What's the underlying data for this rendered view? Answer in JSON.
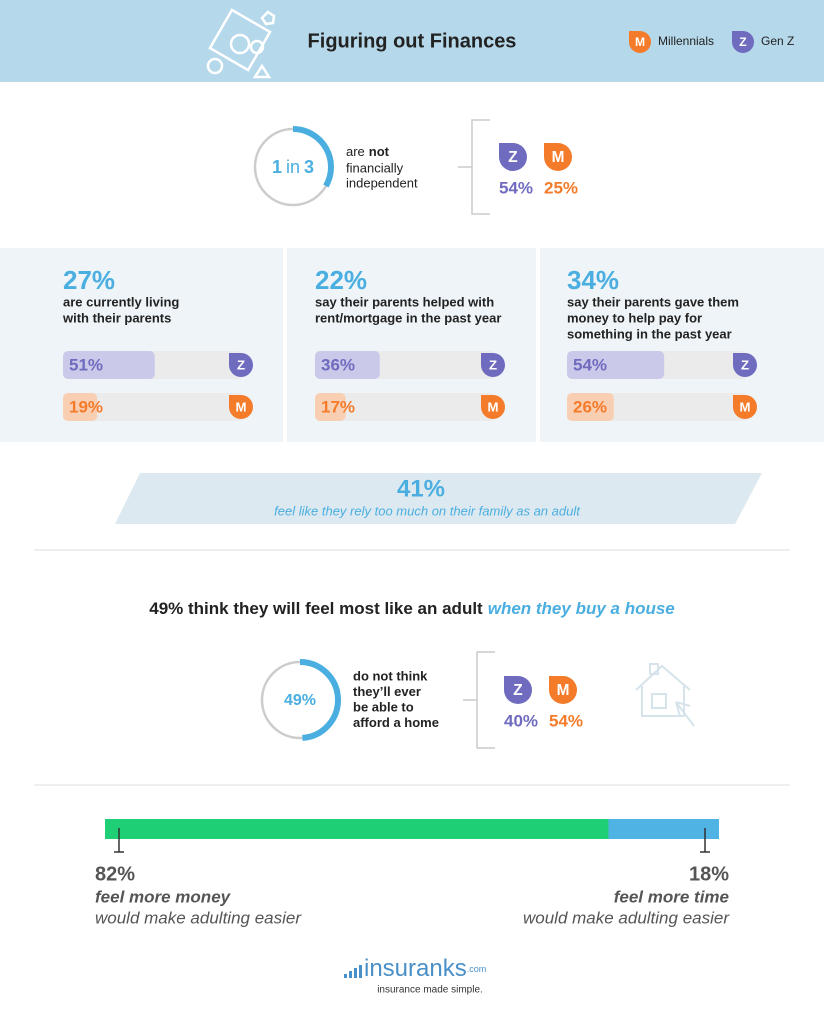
{
  "header": {
    "title": "Figuring out Finances",
    "legend": [
      {
        "key": "M",
        "name": "Millennials",
        "color": "#f47b2a"
      },
      {
        "key": "Z",
        "name": "Gen Z",
        "color": "#6f6bbf"
      }
    ]
  },
  "independence": {
    "ring": {
      "n": 1,
      "word": "in",
      "of": 3
    },
    "text_pre": "are",
    "text_bold": "not",
    "text_line2": "financially",
    "text_line3": "independent",
    "groups": [
      {
        "key": "Z",
        "value": 54,
        "label": "54%",
        "color": "#6f6bbf"
      },
      {
        "key": "M",
        "value": 25,
        "label": "25%",
        "color": "#f47b2a"
      }
    ]
  },
  "stats": [
    {
      "headline": {
        "value": 27,
        "label": "27%"
      },
      "lines": [
        "are currently living",
        "with their parents"
      ],
      "bars": [
        {
          "key": "Z",
          "value": 51,
          "label": "51%",
          "color": "#6f6bbf",
          "fill": "#cbc9e9"
        },
        {
          "key": "M",
          "value": 19,
          "label": "19%",
          "color": "#f47b2a",
          "fill": "#f9cfb3"
        }
      ]
    },
    {
      "headline": {
        "value": 22,
        "label": "22%"
      },
      "lines": [
        "say their parents helped with",
        "rent/mortgage in the past year"
      ],
      "bars": [
        {
          "key": "Z",
          "value": 36,
          "label": "36%",
          "color": "#6f6bbf",
          "fill": "#cbc9e9"
        },
        {
          "key": "M",
          "value": 17,
          "label": "17%",
          "color": "#f47b2a",
          "fill": "#f9cfb3"
        }
      ]
    },
    {
      "headline": {
        "value": 34,
        "label": "34%"
      },
      "lines": [
        "say their parents gave them",
        "money to help pay for",
        "something in the past year"
      ],
      "bars": [
        {
          "key": "Z",
          "value": 54,
          "label": "54%",
          "color": "#6f6bbf",
          "fill": "#cbc9e9"
        },
        {
          "key": "M",
          "value": 26,
          "label": "26%",
          "color": "#f47b2a",
          "fill": "#f9cfb3"
        }
      ]
    }
  ],
  "banner": {
    "value": 41,
    "label": "41%",
    "text": "feel like they rely too much on their family as an adult"
  },
  "house": {
    "headline": "49% think they will feel most like an adult",
    "headline_italic": "when they buy a house",
    "ring": {
      "value": 49,
      "label": "49%"
    },
    "lines": [
      "do not think",
      "they’ll ever",
      "be able to",
      "afford a home"
    ],
    "groups": [
      {
        "key": "Z",
        "value": 40,
        "label": "40%",
        "color": "#6f6bbf"
      },
      {
        "key": "M",
        "value": 54,
        "label": "54%",
        "color": "#f47b2a"
      }
    ]
  },
  "split": [
    {
      "value": 82,
      "label": "82%",
      "bold": "feel more money",
      "text": "would make adulting easier",
      "color": "#1fcf75"
    },
    {
      "value": 18,
      "label": "18%",
      "bold": "feel more time",
      "text": "would make adulting easier",
      "color": "#4fb3e3"
    }
  ],
  "footer": {
    "logo": "insuranks",
    "domain": ".com",
    "tagline": "insurance made simple."
  }
}
